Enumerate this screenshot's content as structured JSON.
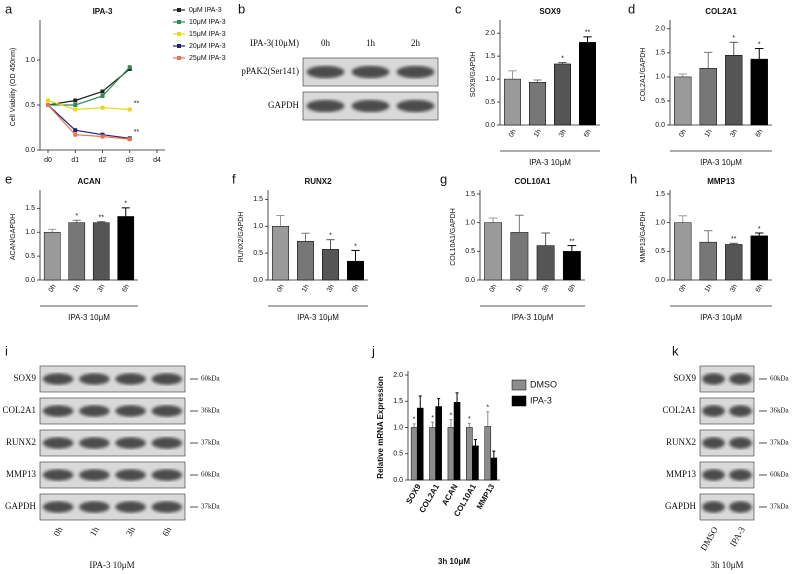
{
  "chart_data": [
    {
      "panel_label": "a",
      "type": "line",
      "title": "IPA-3",
      "y_label": "Cell Viability (OD 450nm)",
      "categories": [
        "d0",
        "d1",
        "d2",
        "d3",
        "d4"
      ],
      "series": [
        {
          "name": "0μM IPA-3",
          "color": "#222222",
          "values": [
            0.5,
            0.55,
            0.65,
            0.9,
            null
          ]
        },
        {
          "name": "10μM IPA-3",
          "color": "#2e8b57",
          "values": [
            0.5,
            0.5,
            0.6,
            0.92,
            null
          ]
        },
        {
          "name": "15μM IPA-3",
          "color": "#e6d81c",
          "values": [
            0.55,
            0.45,
            0.47,
            0.45,
            null
          ]
        },
        {
          "name": "20μM IPA-3",
          "color": "#22227a",
          "values": [
            0.5,
            0.22,
            0.17,
            0.13,
            null
          ]
        },
        {
          "name": "25μM IPA-3",
          "color": "#e9734f",
          "values": [
            0.5,
            0.17,
            0.15,
            0.12,
            null
          ]
        }
      ],
      "annotations": [
        {
          "category": "d3",
          "series": "15μM IPA-3",
          "text": "**"
        },
        {
          "category": "d3",
          "series": "20μM IPA-3",
          "text": "**"
        }
      ],
      "ylim": [
        0,
        1.4
      ],
      "yticks": [
        {
          "value": 0,
          "label": "0.0"
        },
        0.5,
        {
          "value": 1,
          "label": "1.0"
        }
      ]
    },
    {
      "panel_label": "c",
      "type": "bar",
      "title": "SOX9",
      "y_label": "SOX9/GAPDH",
      "x_label": "IPA-3 10μM",
      "categories": [
        "0h",
        "1h",
        "3h",
        "6h"
      ],
      "values": [
        1.0,
        0.93,
        1.33,
        1.8
      ],
      "errors": [
        0.18,
        0.05,
        0.03,
        0.12
      ],
      "colors": [
        "#9a9a9a",
        "#777777",
        "#555555",
        "#000000"
      ],
      "annotations": [
        {
          "category": "3h",
          "text": "*"
        },
        {
          "category": "6h",
          "text": "**"
        }
      ],
      "ylim": [
        0,
        2.2
      ],
      "yticks": [
        {
          "value": 0,
          "label": "0.0"
        },
        0.5,
        {
          "value": 1,
          "label": "1.0"
        },
        1.5,
        {
          "value": 2,
          "label": "2.0"
        }
      ]
    },
    {
      "panel_label": "d",
      "type": "bar",
      "title": "COL2A1",
      "y_label": "COL2A1/GAPDH",
      "x_label": "IPA-3 10μM",
      "categories": [
        "0h",
        "1h",
        "3h",
        "6h"
      ],
      "values": [
        1.0,
        1.18,
        1.45,
        1.37
      ],
      "errors": [
        0.06,
        0.33,
        0.27,
        0.22
      ],
      "colors": [
        "#9a9a9a",
        "#777777",
        "#555555",
        "#000000"
      ],
      "annotations": [
        {
          "category": "3h",
          "text": "*"
        },
        {
          "category": "6h",
          "text": "*"
        }
      ],
      "ylim": [
        0,
        2.1
      ],
      "yticks": [
        {
          "value": 0,
          "label": "0.0"
        },
        0.5,
        {
          "value": 1,
          "label": "1.0"
        },
        1.5,
        {
          "value": 2,
          "label": "2.0"
        }
      ]
    },
    {
      "panel_label": "e",
      "type": "bar",
      "title": "ACAN",
      "y_label": "ACAN/GAPDH",
      "x_label": "IPA-3 10μM",
      "categories": [
        "0h",
        "1h",
        "3h",
        "6h"
      ],
      "values": [
        1.0,
        1.2,
        1.2,
        1.33
      ],
      "errors": [
        0.06,
        0.05,
        0.02,
        0.18
      ],
      "colors": [
        "#9a9a9a",
        "#777777",
        "#555555",
        "#000000"
      ],
      "annotations": [
        {
          "category": "1h",
          "text": "*"
        },
        {
          "category": "3h",
          "text": "**"
        },
        {
          "category": "6h",
          "text": "*"
        }
      ],
      "ylim": [
        0,
        1.8
      ],
      "yticks": [
        {
          "value": 0,
          "label": "0.0"
        },
        0.5,
        {
          "value": 1,
          "label": "1.0"
        },
        1.5
      ]
    },
    {
      "panel_label": "f",
      "type": "bar",
      "title": "RUNX2",
      "y_label": "RUNX2/GAPDH",
      "x_label": "IPA-3 10μM",
      "categories": [
        "0h",
        "1h",
        "3h",
        "6h"
      ],
      "values": [
        1.0,
        0.72,
        0.57,
        0.35
      ],
      "errors": [
        0.2,
        0.15,
        0.18,
        0.2
      ],
      "colors": [
        "#9a9a9a",
        "#777777",
        "#555555",
        "#000000"
      ],
      "annotations": [
        {
          "category": "3h",
          "text": "*"
        },
        {
          "category": "6h",
          "text": "*"
        }
      ],
      "ylim": [
        0,
        1.6
      ],
      "yticks": [
        {
          "value": 0,
          "label": "0.0"
        },
        0.5,
        {
          "value": 1,
          "label": "1.0"
        },
        1.5
      ]
    },
    {
      "panel_label": "g",
      "type": "bar",
      "title": "COL10A1",
      "y_label": "COL10A1/GAPDH",
      "x_label": "IPA-3 10μM",
      "categories": [
        "0h",
        "1h",
        "3h",
        "6h"
      ],
      "values": [
        1.0,
        0.83,
        0.6,
        0.5
      ],
      "errors": [
        0.08,
        0.3,
        0.22,
        0.1
      ],
      "colors": [
        "#9a9a9a",
        "#777777",
        "#555555",
        "#000000"
      ],
      "annotations": [
        {
          "category": "6h",
          "text": "**"
        }
      ],
      "ylim": [
        0,
        1.5
      ],
      "yticks": [
        {
          "value": 0,
          "label": "0.0"
        },
        0.5,
        {
          "value": 1,
          "label": "1.0"
        },
        1.5
      ]
    },
    {
      "panel_label": "h",
      "type": "bar",
      "title": "MMP13",
      "y_label": "MMP13/GAPDH",
      "x_label": "IPA-3 10μM",
      "categories": [
        "0h",
        "1h",
        "3h",
        "6h"
      ],
      "values": [
        1.0,
        0.66,
        0.62,
        0.77
      ],
      "errors": [
        0.12,
        0.2,
        0.02,
        0.05
      ],
      "colors": [
        "#9a9a9a",
        "#777777",
        "#555555",
        "#000000"
      ],
      "annotations": [
        {
          "category": "3h",
          "text": "**"
        },
        {
          "category": "6h",
          "text": "*"
        }
      ],
      "ylim": [
        0,
        1.5
      ],
      "yticks": [
        {
          "value": 0,
          "label": "0.0"
        },
        0.5,
        {
          "value": 1,
          "label": "1.0"
        },
        1.5
      ]
    },
    {
      "panel_label": "j",
      "type": "bar",
      "y_label": "Relative mRNA Expression",
      "x_label": "3h  10μM",
      "categories": [
        "SOX9",
        "COL2A1",
        "ACAN",
        "COL10A1",
        "MMP13"
      ],
      "series": [
        {
          "name": "DMSO",
          "color": "#8c8c8c",
          "values": [
            1.0,
            1.0,
            1.0,
            1.0,
            1.02
          ],
          "errors": [
            0.07,
            0.1,
            0.15,
            0.08,
            0.28
          ]
        },
        {
          "name": "IPA-3",
          "color": "#000000",
          "values": [
            1.37,
            1.4,
            1.48,
            0.65,
            0.42
          ],
          "errors": [
            0.23,
            0.15,
            0.18,
            0.12,
            0.13
          ]
        }
      ],
      "annotations": [
        {
          "category": "SOX9",
          "series": "DMSO",
          "text": "*"
        },
        {
          "category": "COL2A1",
          "series": "DMSO",
          "text": "*"
        },
        {
          "category": "ACAN",
          "series": "DMSO",
          "text": "*"
        },
        {
          "category": "COL10A1",
          "series": "DMSO",
          "text": "*"
        },
        {
          "category": "MMP13",
          "series": "DMSO",
          "text": "*"
        }
      ],
      "ylim": [
        0,
        2.0
      ],
      "yticks": [
        {
          "value": 0,
          "label": "0.0"
        },
        0.5,
        {
          "value": 1,
          "label": "1.0"
        },
        1.5,
        {
          "value": 2,
          "label": "2.0"
        }
      ]
    }
  ],
  "blots": [
    {
      "panel_label": "b",
      "header": "IPA-3(10μM)",
      "lanes": [
        "0h",
        "1h",
        "2h"
      ],
      "rows": [
        {
          "name": "pPAK2(Ser141)"
        },
        {
          "name": "GAPDH"
        }
      ]
    },
    {
      "panel_label": "i",
      "lanes": [
        "0h",
        "1h",
        "3h",
        "6h"
      ],
      "footer": "IPA-3   10μM",
      "rows": [
        {
          "name": "SOX9",
          "size": "60kDa"
        },
        {
          "name": "COL2A1",
          "size": "36kDa"
        },
        {
          "name": "RUNX2",
          "size": "37kDa"
        },
        {
          "name": "MMP13",
          "size": "60kDa"
        },
        {
          "name": "GAPDH",
          "size": "37kDa"
        }
      ]
    },
    {
      "panel_label": "k",
      "lanes": [
        "DMSO",
        "IPA-3"
      ],
      "footer": "3h  10μM",
      "rows": [
        {
          "name": "SOX9",
          "size": "60kDa"
        },
        {
          "name": "COL2A1",
          "size": "36kDa"
        },
        {
          "name": "RUNX2",
          "size": "37kDa"
        },
        {
          "name": "MMP13",
          "size": "60kDa"
        },
        {
          "name": "GAPDH",
          "size": "37kDa"
        }
      ]
    }
  ]
}
